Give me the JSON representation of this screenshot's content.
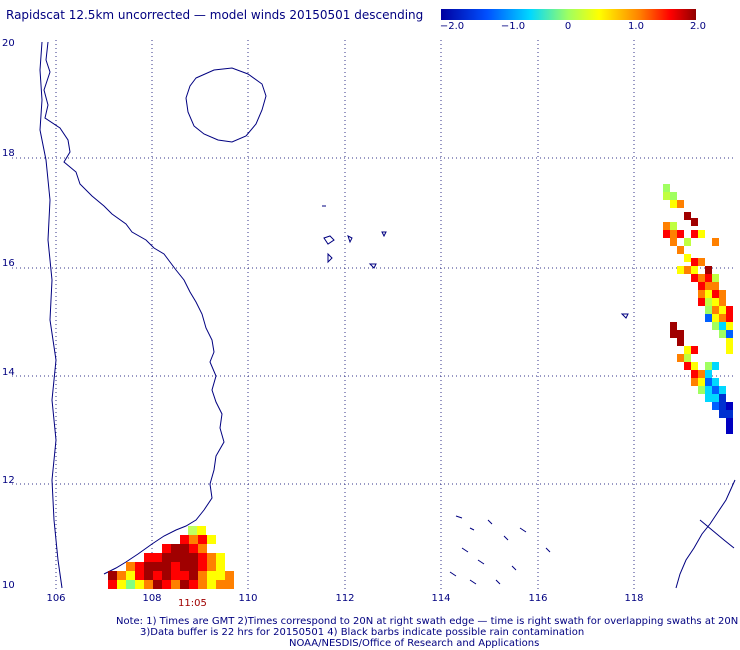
{
  "title": "Rapidscat 12.5km uncorrected — model winds 20150501 descending",
  "colorbar": {
    "ticks": [
      "−2.0",
      "−1.0",
      "0",
      "1.0",
      "2.0"
    ],
    "colors": [
      "#0000b0",
      "#0060ff",
      "#00d8ff",
      "#a0ff60",
      "#ffff00",
      "#ff8000",
      "#ff0000",
      "#a00000"
    ]
  },
  "axes": {
    "lat_labels": [
      "20",
      "18",
      "16",
      "14",
      "12",
      "10"
    ],
    "lon_labels": [
      "106",
      "108",
      "110",
      "112",
      "114",
      "116",
      "118"
    ]
  },
  "swath_time": "11:05",
  "notes": [
    "Note: 1) Times are GMT 2)Times correspond to 20N at right swath edge — time is right swath for overlapping swaths at 20N",
    "3)Data buffer is 22 hrs for 20150501 4) Black barbs indicate possible rain contamination",
    "NOAA/NESDIS/Office of Research and Applications"
  ]
}
